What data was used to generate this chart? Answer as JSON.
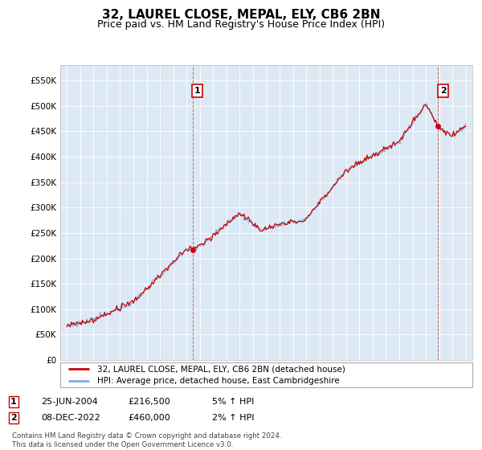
{
  "title": "32, LAUREL CLOSE, MEPAL, ELY, CB6 2BN",
  "subtitle": "Price paid vs. HM Land Registry's House Price Index (HPI)",
  "ylim": [
    0,
    580000
  ],
  "yticks": [
    0,
    50000,
    100000,
    150000,
    200000,
    250000,
    300000,
    350000,
    400000,
    450000,
    500000,
    550000
  ],
  "ytick_labels": [
    "£0",
    "£50K",
    "£100K",
    "£150K",
    "£200K",
    "£250K",
    "£300K",
    "£350K",
    "£400K",
    "£450K",
    "£500K",
    "£550K"
  ],
  "xlim_start": 1994.5,
  "xlim_end": 2025.5,
  "bg_color": "#dce9f5",
  "line1_color": "#cc0000",
  "line2_color": "#7ab0d4",
  "sale1_x": 2004.48,
  "sale1_y": 216500,
  "sale2_x": 2022.93,
  "sale2_y": 460000,
  "annotation1_label": "1",
  "annotation2_label": "2",
  "legend_line1": "32, LAUREL CLOSE, MEPAL, ELY, CB6 2BN (detached house)",
  "legend_line2": "HPI: Average price, detached house, East Cambridgeshire",
  "table_rows": [
    {
      "num": "1",
      "date": "25-JUN-2004",
      "price": "£216,500",
      "hpi": "5% ↑ HPI"
    },
    {
      "num": "2",
      "date": "08-DEC-2022",
      "price": "£460,000",
      "hpi": "2% ↑ HPI"
    }
  ],
  "footer": "Contains HM Land Registry data © Crown copyright and database right 2024.\nThis data is licensed under the Open Government Licence v3.0.",
  "title_fontsize": 11,
  "subtitle_fontsize": 9
}
